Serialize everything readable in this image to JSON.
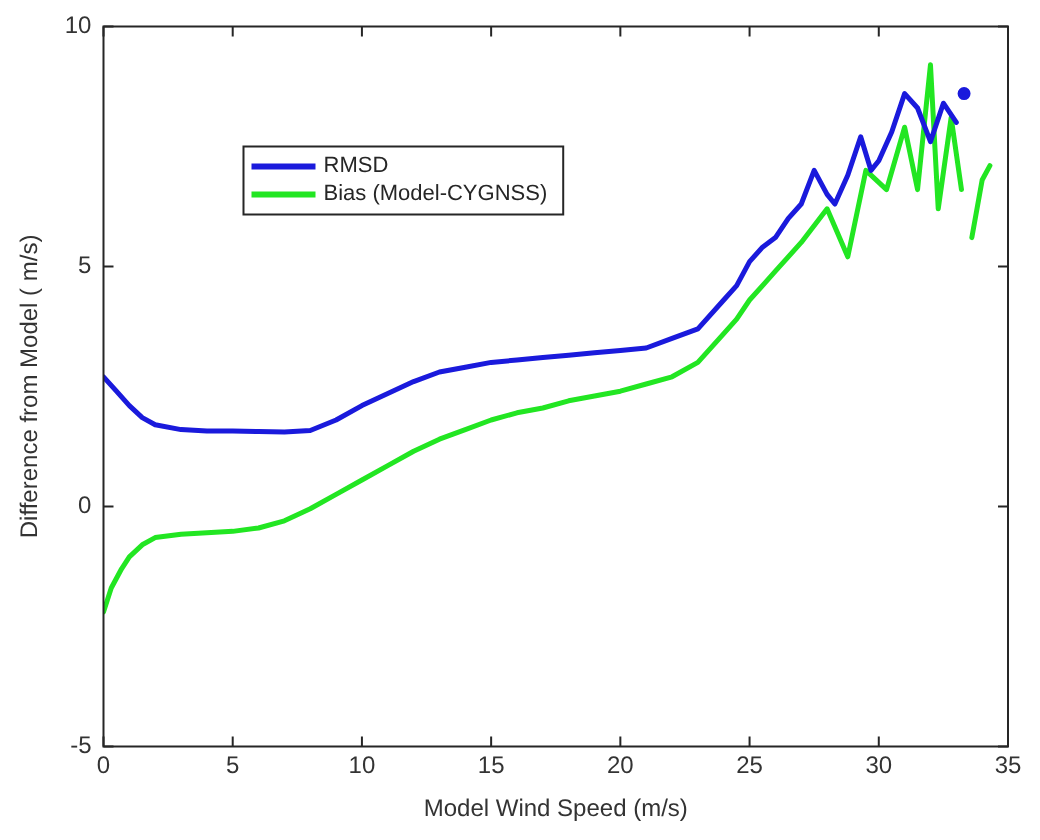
{
  "chart_data": {
    "type": "line",
    "xlabel": "Model Wind Speed (m/s)",
    "ylabel": "Difference from Model ( m/s)",
    "xlim": [
      0,
      35
    ],
    "xticks": [
      0,
      5,
      10,
      15,
      20,
      25,
      30,
      35
    ],
    "ylim": [
      -5,
      10
    ],
    "yticks": [
      -5,
      0,
      5,
      10
    ],
    "grid": false,
    "legend": "top left",
    "marker": "none",
    "line_style": "solid",
    "series": [
      {
        "name": "RMSD",
        "color": "#1a1adc",
        "x": [
          0,
          0.5,
          1,
          1.5,
          2,
          3,
          4,
          5,
          6,
          7,
          8,
          9,
          10,
          11,
          12,
          13,
          14,
          15,
          16,
          17,
          18,
          19,
          20,
          21,
          22,
          23,
          24,
          24.5,
          25,
          25.5,
          26,
          26.5,
          27,
          27.5,
          28,
          28.3,
          28.8,
          29.3,
          29.7,
          30,
          30.5,
          31,
          31.5,
          32,
          32.5,
          33,
          33.1,
          33.3
        ],
        "values": [
          2.7,
          2.4,
          2.1,
          1.85,
          1.7,
          1.6,
          1.57,
          1.57,
          1.56,
          1.55,
          1.58,
          1.8,
          2.1,
          2.35,
          2.6,
          2.8,
          2.9,
          3.0,
          3.05,
          3.1,
          3.15,
          3.2,
          3.25,
          3.3,
          3.5,
          3.7,
          4.3,
          4.6,
          5.1,
          5.4,
          5.6,
          6.0,
          6.3,
          7.0,
          6.5,
          6.3,
          6.9,
          7.7,
          7.0,
          7.2,
          7.8,
          8.6,
          8.3,
          7.6,
          8.4,
          8.0,
          null,
          8.6
        ]
      },
      {
        "name": "Bias (Model-CYGNSS)",
        "color": "#22e622",
        "x": [
          0,
          0.3,
          0.7,
          1,
          1.5,
          2,
          3,
          4,
          5,
          6,
          7,
          8,
          9,
          10,
          11,
          12,
          13,
          14,
          15,
          16,
          17,
          18,
          19,
          20,
          21,
          22,
          23,
          24,
          24.5,
          25,
          26,
          27,
          28,
          28.8,
          29.5,
          30.3,
          31,
          31.5,
          32,
          32.3,
          32.8,
          33.2,
          33.4,
          33.6,
          34,
          34.3
        ],
        "values": [
          -2.2,
          -1.7,
          -1.3,
          -1.05,
          -0.8,
          -0.65,
          -0.58,
          -0.55,
          -0.52,
          -0.45,
          -0.3,
          -0.05,
          0.25,
          0.55,
          0.85,
          1.15,
          1.4,
          1.6,
          1.8,
          1.95,
          2.05,
          2.2,
          2.3,
          2.4,
          2.55,
          2.7,
          3.0,
          3.6,
          3.9,
          4.3,
          4.9,
          5.5,
          6.2,
          5.2,
          7.0,
          6.6,
          7.9,
          6.6,
          9.2,
          6.2,
          8.1,
          6.6,
          null,
          5.6,
          6.8,
          7.1
        ]
      }
    ]
  }
}
